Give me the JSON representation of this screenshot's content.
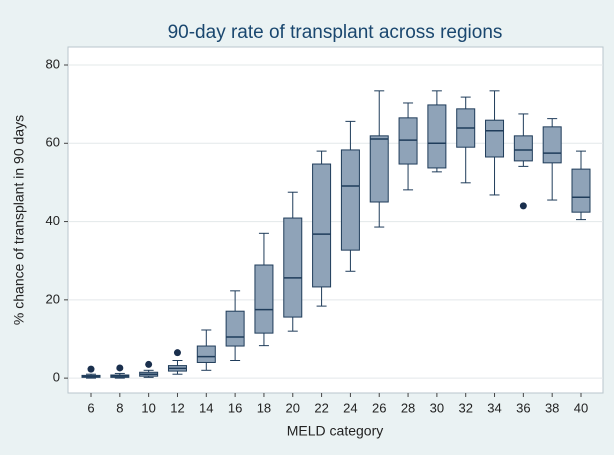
{
  "chart_data": {
    "type": "box",
    "title": "90-day rate of transplant across regions",
    "x_label": "MELD category",
    "y_label": "% chance of transplant in 90 days",
    "categories": [
      6,
      8,
      10,
      12,
      14,
      16,
      18,
      20,
      22,
      24,
      26,
      28,
      30,
      32,
      34,
      36,
      38,
      40
    ],
    "boxes": [
      {
        "min": 0,
        "q1": 0.2,
        "median": 0.4,
        "q3": 0.7,
        "max": 1,
        "outliers": [
          2.3
        ]
      },
      {
        "min": 0,
        "q1": 0.2,
        "median": 0.5,
        "q3": 0.8,
        "max": 1.2,
        "outliers": [
          2.6
        ]
      },
      {
        "min": 0.2,
        "q1": 0.5,
        "median": 1,
        "q3": 1.5,
        "max": 2,
        "outliers": [
          3.5
        ]
      },
      {
        "min": 1,
        "q1": 1.8,
        "median": 2.5,
        "q3": 3.2,
        "max": 4.5,
        "outliers": [
          6.5
        ]
      },
      {
        "min": 2,
        "q1": 4,
        "median": 5.5,
        "q3": 8.2,
        "max": 12.3,
        "outliers": []
      },
      {
        "min": 4.5,
        "q1": 8.2,
        "median": 10.5,
        "q3": 17.1,
        "max": 22.3,
        "outliers": []
      },
      {
        "min": 8.3,
        "q1": 11.5,
        "median": 17.5,
        "q3": 28.9,
        "max": 37,
        "outliers": []
      },
      {
        "min": 12,
        "q1": 15.6,
        "median": 25.6,
        "q3": 40.9,
        "max": 47.5,
        "outliers": []
      },
      {
        "min": 18.4,
        "q1": 23.3,
        "median": 36.8,
        "q3": 54.7,
        "max": 58,
        "outliers": []
      },
      {
        "min": 27.3,
        "q1": 32.7,
        "median": 49.1,
        "q3": 58.3,
        "max": 65.6,
        "outliers": []
      },
      {
        "min": 38.6,
        "q1": 45,
        "median": 61.1,
        "q3": 61.9,
        "max": 73.4,
        "outliers": []
      },
      {
        "min": 48.1,
        "q1": 54.7,
        "median": 60.8,
        "q3": 66.5,
        "max": 70.3,
        "outliers": []
      },
      {
        "min": 52.7,
        "q1": 53.7,
        "median": 60,
        "q3": 69.8,
        "max": 73.4,
        "outliers": []
      },
      {
        "min": 49.9,
        "q1": 59,
        "median": 63.9,
        "q3": 68.8,
        "max": 71.8,
        "outliers": []
      },
      {
        "min": 46.8,
        "q1": 56.5,
        "median": 63.2,
        "q3": 65.9,
        "max": 73.4,
        "outliers": []
      },
      {
        "min": 54.1,
        "q1": 55.5,
        "median": 58.3,
        "q3": 61.9,
        "max": 67.5,
        "outliers": [
          44
        ]
      },
      {
        "min": 45.5,
        "q1": 55,
        "median": 57.5,
        "q3": 64.2,
        "max": 66.3,
        "outliers": []
      },
      {
        "min": 40.5,
        "q1": 42.4,
        "median": 46.2,
        "q3": 53.4,
        "max": 58,
        "outliers": []
      }
    ],
    "color": "#8fa3b8",
    "edge_color": "#1f3c5a",
    "ylim": [
      -3.8,
      84.6
    ],
    "yticks": [
      0,
      20,
      40,
      60,
      80
    ],
    "grid": true
  }
}
